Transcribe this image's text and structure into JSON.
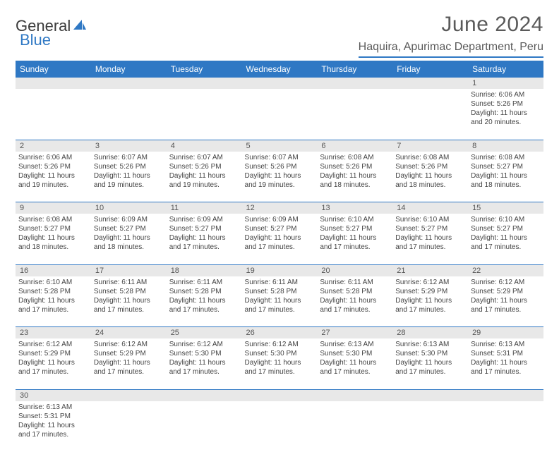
{
  "brand": {
    "name_part1": "General",
    "name_part2": "Blue"
  },
  "title": "June 2024",
  "location": "Haquira, Apurimac Department, Peru",
  "colors": {
    "accent": "#2f78c4",
    "header_bg": "#2f78c4",
    "header_text": "#ffffff",
    "daynum_bg": "#e8e8e8",
    "text": "#444444",
    "title_text": "#5a5a5a"
  },
  "typography": {
    "body_pt": 10,
    "header_pt": 12,
    "title_pt": 30,
    "location_pt": 16
  },
  "calendar": {
    "type": "table",
    "columns": [
      "Sunday",
      "Monday",
      "Tuesday",
      "Wednesday",
      "Thursday",
      "Friday",
      "Saturday"
    ],
    "weeks": [
      [
        null,
        null,
        null,
        null,
        null,
        null,
        {
          "d": "1",
          "sr": "6:06 AM",
          "ss": "5:26 PM",
          "dl": "11 hours and 20 minutes."
        }
      ],
      [
        {
          "d": "2",
          "sr": "6:06 AM",
          "ss": "5:26 PM",
          "dl": "11 hours and 19 minutes."
        },
        {
          "d": "3",
          "sr": "6:07 AM",
          "ss": "5:26 PM",
          "dl": "11 hours and 19 minutes."
        },
        {
          "d": "4",
          "sr": "6:07 AM",
          "ss": "5:26 PM",
          "dl": "11 hours and 19 minutes."
        },
        {
          "d": "5",
          "sr": "6:07 AM",
          "ss": "5:26 PM",
          "dl": "11 hours and 19 minutes."
        },
        {
          "d": "6",
          "sr": "6:08 AM",
          "ss": "5:26 PM",
          "dl": "11 hours and 18 minutes."
        },
        {
          "d": "7",
          "sr": "6:08 AM",
          "ss": "5:26 PM",
          "dl": "11 hours and 18 minutes."
        },
        {
          "d": "8",
          "sr": "6:08 AM",
          "ss": "5:27 PM",
          "dl": "11 hours and 18 minutes."
        }
      ],
      [
        {
          "d": "9",
          "sr": "6:08 AM",
          "ss": "5:27 PM",
          "dl": "11 hours and 18 minutes."
        },
        {
          "d": "10",
          "sr": "6:09 AM",
          "ss": "5:27 PM",
          "dl": "11 hours and 18 minutes."
        },
        {
          "d": "11",
          "sr": "6:09 AM",
          "ss": "5:27 PM",
          "dl": "11 hours and 17 minutes."
        },
        {
          "d": "12",
          "sr": "6:09 AM",
          "ss": "5:27 PM",
          "dl": "11 hours and 17 minutes."
        },
        {
          "d": "13",
          "sr": "6:10 AM",
          "ss": "5:27 PM",
          "dl": "11 hours and 17 minutes."
        },
        {
          "d": "14",
          "sr": "6:10 AM",
          "ss": "5:27 PM",
          "dl": "11 hours and 17 minutes."
        },
        {
          "d": "15",
          "sr": "6:10 AM",
          "ss": "5:27 PM",
          "dl": "11 hours and 17 minutes."
        }
      ],
      [
        {
          "d": "16",
          "sr": "6:10 AM",
          "ss": "5:28 PM",
          "dl": "11 hours and 17 minutes."
        },
        {
          "d": "17",
          "sr": "6:11 AM",
          "ss": "5:28 PM",
          "dl": "11 hours and 17 minutes."
        },
        {
          "d": "18",
          "sr": "6:11 AM",
          "ss": "5:28 PM",
          "dl": "11 hours and 17 minutes."
        },
        {
          "d": "19",
          "sr": "6:11 AM",
          "ss": "5:28 PM",
          "dl": "11 hours and 17 minutes."
        },
        {
          "d": "20",
          "sr": "6:11 AM",
          "ss": "5:28 PM",
          "dl": "11 hours and 17 minutes."
        },
        {
          "d": "21",
          "sr": "6:12 AM",
          "ss": "5:29 PM",
          "dl": "11 hours and 17 minutes."
        },
        {
          "d": "22",
          "sr": "6:12 AM",
          "ss": "5:29 PM",
          "dl": "11 hours and 17 minutes."
        }
      ],
      [
        {
          "d": "23",
          "sr": "6:12 AM",
          "ss": "5:29 PM",
          "dl": "11 hours and 17 minutes."
        },
        {
          "d": "24",
          "sr": "6:12 AM",
          "ss": "5:29 PM",
          "dl": "11 hours and 17 minutes."
        },
        {
          "d": "25",
          "sr": "6:12 AM",
          "ss": "5:30 PM",
          "dl": "11 hours and 17 minutes."
        },
        {
          "d": "26",
          "sr": "6:12 AM",
          "ss": "5:30 PM",
          "dl": "11 hours and 17 minutes."
        },
        {
          "d": "27",
          "sr": "6:13 AM",
          "ss": "5:30 PM",
          "dl": "11 hours and 17 minutes."
        },
        {
          "d": "28",
          "sr": "6:13 AM",
          "ss": "5:30 PM",
          "dl": "11 hours and 17 minutes."
        },
        {
          "d": "29",
          "sr": "6:13 AM",
          "ss": "5:31 PM",
          "dl": "11 hours and 17 minutes."
        }
      ],
      [
        {
          "d": "30",
          "sr": "6:13 AM",
          "ss": "5:31 PM",
          "dl": "11 hours and 17 minutes."
        },
        null,
        null,
        null,
        null,
        null,
        null
      ]
    ],
    "labels": {
      "sunrise": "Sunrise:",
      "sunset": "Sunset:",
      "daylight": "Daylight:"
    }
  }
}
